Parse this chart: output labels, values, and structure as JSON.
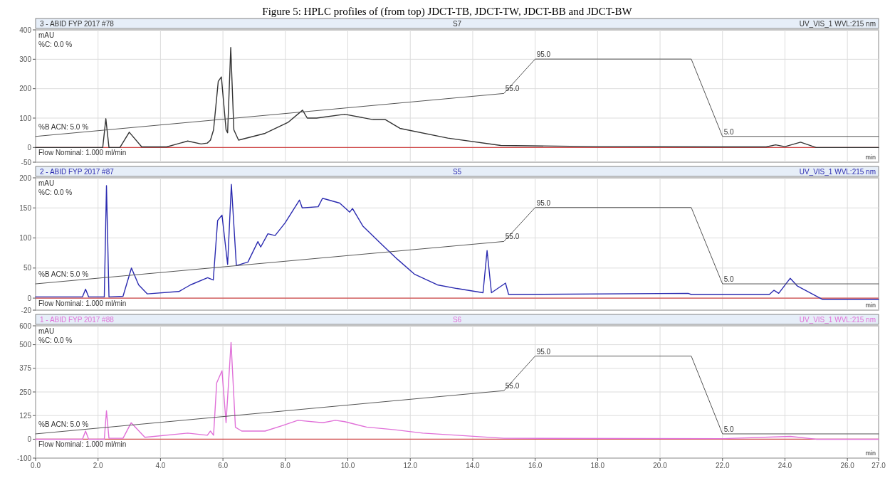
{
  "chart_data": [
    {
      "type": "line",
      "title": "Figure 5: HPLC profiles of (from top) JDCT-TB, JDCT-TW, JDCT-BB and JDCT-BW",
      "xlabel": "min",
      "ylabel": "mAU",
      "tick_labels": "y",
      "grid": true,
      "annotations": [
        "3 - ABID FYP 2017 #78",
        "S7",
        "UV_VIS_1 WVL:215 nm",
        "%C: 0.0 %",
        "Flow Nominal: 1.000 ml/min"
      ],
      "xlim": [
        0,
        27
      ],
      "ylim": [
        -50,
        400
      ],
      "yticks": [
        -50,
        0,
        100,
        200,
        300,
        400
      ],
      "y2lim": [
        -25,
        129
      ],
      "ref_lines": [
        {
          "axis": "y",
          "value": 0,
          "color": "#d04848"
        }
      ],
      "series": [
        {
          "color": "#333333",
          "x": [
            0,
            2.15,
            2.25,
            2.35,
            2.7,
            3.0,
            3.4,
            4.2,
            4.87,
            5.3,
            5.5,
            5.6,
            5.7,
            5.85,
            5.95,
            6.1,
            6.15,
            6.25,
            6.35,
            6.5,
            7.35,
            8.08,
            8.55,
            8.7,
            9.0,
            9.9,
            10.8,
            11.2,
            11.67,
            13.2,
            14.9,
            18,
            22,
            23.4,
            23.7,
            24.0,
            24.5,
            25.0,
            27
          ],
          "values": [
            0,
            0,
            98,
            0,
            0,
            52,
            2,
            2,
            22,
            12,
            15,
            25,
            60,
            225,
            240,
            60,
            50,
            340,
            60,
            25,
            48,
            85,
            127,
            100,
            100,
            113,
            95,
            95,
            65,
            32,
            7,
            3,
            2,
            2,
            9,
            3,
            18,
            0,
            0
          ]
        },
        {
          "axis": "y2",
          "color": "#555555",
          "x": [
            0,
            15,
            16,
            21,
            22,
            27
          ],
          "values": [
            5,
            55,
            95,
            95,
            5,
            5
          ],
          "value_labels": [
            "%B ACN: 5.0 %",
            "55.0",
            "95.0",
            null,
            "5.0",
            null
          ]
        }
      ]
    },
    {
      "type": "line",
      "xlabel": "min",
      "ylabel": "mAU",
      "tick_labels": "y",
      "grid": true,
      "annotations": [
        "2 - ABID FYP 2017 #87",
        "S5",
        "UV_VIS_1 WVL:215 nm",
        "%C: 0.0 %",
        "Flow Nominal: 1.000 ml/min"
      ],
      "xlim": [
        0,
        27
      ],
      "ylim": [
        -20,
        200
      ],
      "yticks": [
        -20,
        0,
        50,
        100,
        150,
        200
      ],
      "y2lim": [
        -26,
        130
      ],
      "ref_lines": [
        {
          "axis": "y",
          "value": 0,
          "color": "#d04848"
        }
      ],
      "series": [
        {
          "color": "#2b2bb0",
          "x": [
            0,
            1.5,
            1.6,
            1.7,
            2.2,
            2.27,
            2.35,
            2.8,
            3.07,
            3.3,
            3.58,
            4.59,
            4.96,
            5.51,
            5.69,
            5.83,
            5.97,
            6.15,
            6.27,
            6.43,
            6.8,
            7.12,
            7.21,
            7.44,
            7.67,
            7.99,
            8.45,
            8.54,
            9.05,
            9.19,
            9.74,
            10.06,
            10.15,
            10.48,
            11.03,
            11.58,
            12.13,
            12.87,
            13.49,
            14.33,
            14.46,
            14.6,
            15.05,
            15.15,
            20.9,
            21.0,
            23.5,
            23.65,
            23.8,
            24.17,
            24.4,
            25.2,
            27
          ],
          "values": [
            2,
            2,
            15,
            2,
            2,
            187,
            2,
            3,
            50,
            22,
            7,
            11,
            22,
            34,
            30,
            129,
            138,
            56,
            189,
            54,
            60,
            94,
            85,
            107,
            104,
            125,
            163,
            150,
            152,
            166,
            158,
            143,
            149,
            120,
            92,
            65,
            40,
            22,
            16,
            9,
            79,
            9,
            25,
            6,
            8,
            6,
            6,
            13,
            8,
            33,
            20,
            -2,
            -2
          ]
        },
        {
          "axis": "y2",
          "color": "#555555",
          "x": [
            0,
            15,
            16,
            21,
            22,
            27
          ],
          "values": [
            5,
            55,
            95,
            95,
            5,
            5
          ],
          "value_labels": [
            "%B ACN: 5.0 %",
            "55.0",
            "95.0",
            null,
            "5.0",
            null
          ]
        }
      ]
    },
    {
      "type": "line",
      "xlabel": "min",
      "ylabel": "mAU",
      "grid": true,
      "annotations": [
        "1 - ABID FYP 2017 #88",
        "S6",
        "UV_VIS_1 WVL:215 nm",
        "%C: 0.0 %",
        "Flow Nominal: 1.000 ml/min"
      ],
      "xlim": [
        0,
        27
      ],
      "xticks": [
        {
          "value": 0,
          "label": "0.0"
        },
        {
          "value": 2,
          "label": "2.0"
        },
        {
          "value": 4,
          "label": "4.0"
        },
        {
          "value": 6,
          "label": "6.0"
        },
        {
          "value": 8,
          "label": "8.0"
        },
        {
          "value": 10,
          "label": "10.0"
        },
        {
          "value": 12,
          "label": "12.0"
        },
        {
          "value": 14,
          "label": "14.0"
        },
        {
          "value": 16,
          "label": "16.0"
        },
        {
          "value": 18,
          "label": "18.0"
        },
        {
          "value": 20,
          "label": "20.0"
        },
        {
          "value": 22,
          "label": "22.0"
        },
        {
          "value": 24,
          "label": "24.0"
        },
        {
          "value": 26,
          "label": "26.0"
        },
        {
          "value": 27,
          "label": "27.0"
        }
      ],
      "ylim": [
        -100,
        600
      ],
      "yticks": [
        -100,
        0,
        125,
        250,
        375,
        500,
        600
      ],
      "y2lim": [
        -23,
        130
      ],
      "ref_lines": [
        {
          "axis": "y",
          "value": 0,
          "color": "#d04848"
        }
      ],
      "series": [
        {
          "color": "#e070d8",
          "x": [
            0,
            1.5,
            1.6,
            1.7,
            2.2,
            2.27,
            2.35,
            2.8,
            3.06,
            3.5,
            4.87,
            5.5,
            5.6,
            5.7,
            5.8,
            5.97,
            6.1,
            6.26,
            6.4,
            6.6,
            7.35,
            7.9,
            8.4,
            9.2,
            9.6,
            9.9,
            10.6,
            11.5,
            12.4,
            13.5,
            15,
            22,
            24.17,
            25,
            27
          ],
          "values": [
            0,
            0,
            43,
            0,
            0,
            150,
            5,
            5,
            87,
            10,
            32,
            21,
            43,
            21,
            298,
            362,
            87,
            512,
            63,
            43,
            43,
            72,
            100,
            87,
            100,
            93,
            64,
            50,
            32,
            21,
            5,
            3,
            15,
            0,
            0
          ]
        },
        {
          "axis": "y2",
          "color": "#555555",
          "x": [
            0,
            15,
            16,
            21,
            22,
            27
          ],
          "values": [
            5,
            55,
            95,
            95,
            5,
            5
          ],
          "value_labels": [
            "%B ACN: 5.0 %",
            "55.0",
            "95.0",
            null,
            "5.0",
            null
          ]
        }
      ]
    }
  ]
}
